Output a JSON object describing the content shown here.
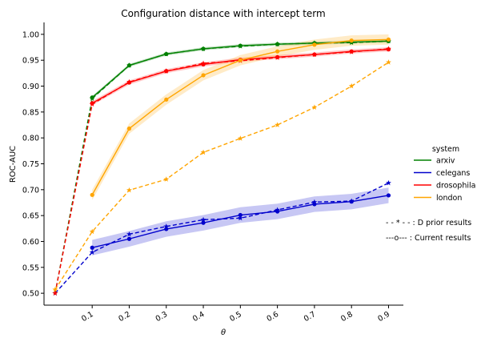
{
  "chart_data": {
    "type": "line",
    "title": "Configuration distance with intercept term",
    "xlabel": "θ",
    "ylabel": "ROC-AUC",
    "xlim": [
      -0.03,
      0.94
    ],
    "ylim": [
      0.477,
      1.023
    ],
    "xticks": [
      0.1,
      0.2,
      0.3,
      0.4,
      0.5,
      0.6,
      0.7,
      0.8,
      0.9
    ],
    "xtick_labels": [
      "0.1",
      "0.2",
      "0.3",
      "0.4",
      "0.5",
      "0.6",
      "0.7",
      "0.8",
      "0.9"
    ],
    "yticks": [
      0.5,
      0.55,
      0.6,
      0.65,
      0.7,
      0.75,
      0.8,
      0.85,
      0.9,
      0.95,
      1.0
    ],
    "ytick_labels": [
      "0.50",
      "0.55",
      "0.60",
      "0.65",
      "0.70",
      "0.75",
      "0.80",
      "0.85",
      "0.90",
      "0.95",
      "1.00"
    ],
    "grid": false,
    "legend": {
      "title": "system",
      "placement": "right",
      "entries": [
        "arxiv",
        "celegans",
        "drosophila",
        "london"
      ]
    },
    "notes": [
      "- - * - - : D prior results",
      "---o--- : Current results"
    ],
    "series": [
      {
        "name": "arxiv",
        "color": "#008000",
        "current": {
          "x": [
            0.1,
            0.2,
            0.3,
            0.4,
            0.5,
            0.6,
            0.7,
            0.8,
            0.9
          ],
          "y": [
            0.878,
            0.94,
            0.962,
            0.972,
            0.978,
            0.981,
            0.983,
            0.985,
            0.987
          ],
          "band": 0.003
        },
        "prior": {
          "x": [
            0,
            0.1,
            0.2,
            0.3,
            0.4,
            0.5,
            0.6,
            0.7,
            0.8,
            0.9
          ],
          "y": [
            0.5,
            0.876,
            0.94,
            0.962,
            0.972,
            0.977,
            0.981,
            0.983,
            0.984,
            0.987
          ]
        }
      },
      {
        "name": "celegans",
        "color": "#0000cc",
        "current": {
          "x": [
            0.1,
            0.2,
            0.3,
            0.4,
            0.5,
            0.6,
            0.7,
            0.8,
            0.9
          ],
          "y": [
            0.588,
            0.605,
            0.624,
            0.636,
            0.651,
            0.658,
            0.672,
            0.677,
            0.689
          ],
          "band": 0.015
        },
        "prior": {
          "x": [
            0,
            0.1,
            0.2,
            0.3,
            0.4,
            0.5,
            0.6,
            0.7,
            0.8,
            0.9
          ],
          "y": [
            0.5,
            0.579,
            0.614,
            0.629,
            0.642,
            0.645,
            0.661,
            0.676,
            0.678,
            0.713
          ]
        }
      },
      {
        "name": "drosophila",
        "color": "#ff0000",
        "current": {
          "x": [
            0.1,
            0.2,
            0.3,
            0.4,
            0.5,
            0.6,
            0.7,
            0.8,
            0.9
          ],
          "y": [
            0.867,
            0.907,
            0.929,
            0.942,
            0.951,
            0.956,
            0.961,
            0.967,
            0.971
          ],
          "band": 0.004
        },
        "prior": {
          "x": [
            0,
            0.1,
            0.2,
            0.3,
            0.4,
            0.5,
            0.6,
            0.7,
            0.8,
            0.9
          ],
          "y": [
            0.5,
            0.865,
            0.908,
            0.929,
            0.944,
            0.949,
            0.955,
            0.961,
            0.966,
            0.972
          ]
        }
      },
      {
        "name": "london",
        "color": "#ffa500",
        "current": {
          "x": [
            0.1,
            0.2,
            0.3,
            0.4,
            0.5,
            0.6,
            0.7,
            0.8,
            0.9
          ],
          "y": [
            0.69,
            0.818,
            0.874,
            0.921,
            0.95,
            0.967,
            0.98,
            0.988,
            0.99
          ],
          "band": 0.01
        },
        "prior": {
          "x": [
            0,
            0.1,
            0.2,
            0.3,
            0.4,
            0.5,
            0.6,
            0.7,
            0.8,
            0.9
          ],
          "y": [
            0.507,
            0.619,
            0.699,
            0.72,
            0.772,
            0.799,
            0.825,
            0.859,
            0.9,
            0.946
          ]
        }
      }
    ]
  }
}
